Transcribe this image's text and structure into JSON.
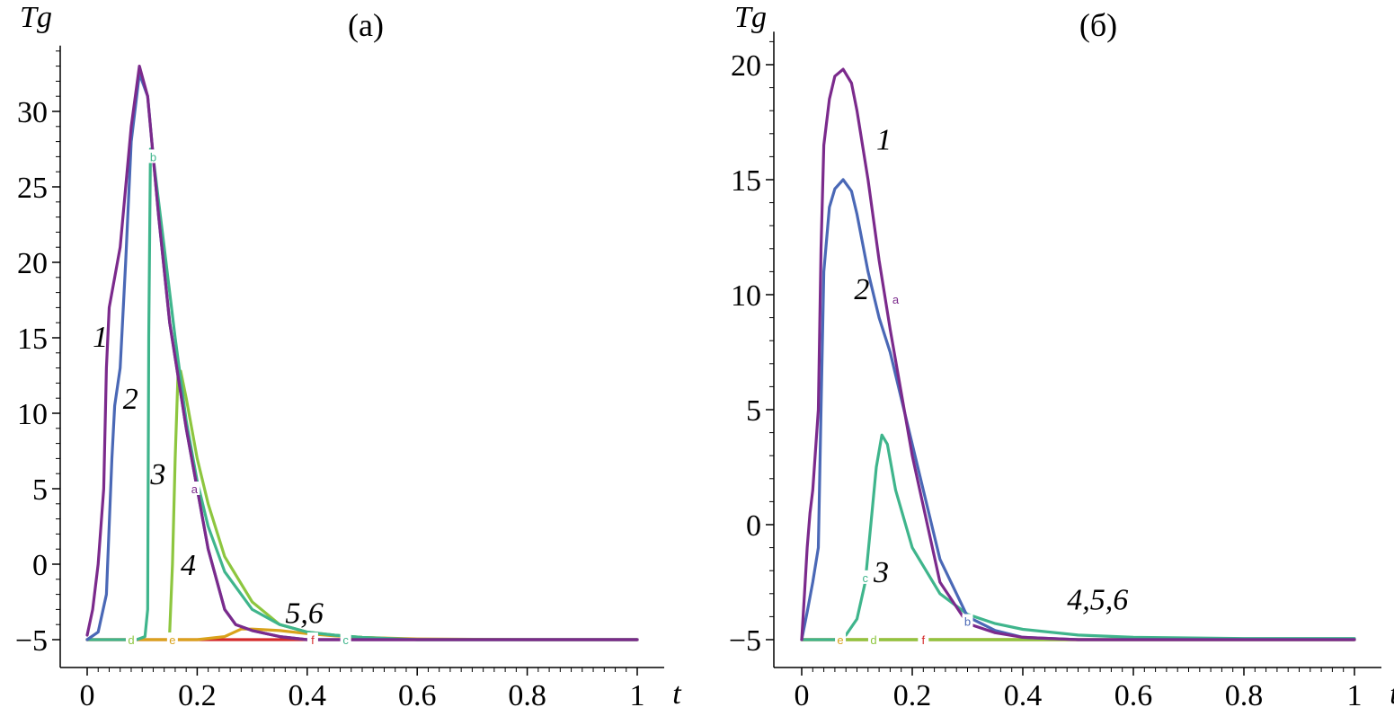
{
  "chart_data": [
    {
      "type": "line",
      "title": "(а)",
      "xlabel": "t",
      "ylabel": "Tg",
      "xlim": [
        0,
        1
      ],
      "ylim": [
        -5,
        34
      ],
      "x_ticks": [
        0,
        0.2,
        0.4,
        0.6,
        0.8,
        1
      ],
      "x_tick_labels": [
        "0",
        "0.2",
        "0.4",
        "0.6",
        "0.8",
        "1"
      ],
      "y_ticks": [
        -5,
        0,
        5,
        10,
        15,
        20,
        25,
        30
      ],
      "y_tick_labels": [
        "−5",
        "0",
        "5",
        "10",
        "15",
        "20",
        "25",
        "30"
      ],
      "series": [
        {
          "name": "1",
          "color": "#7b2a8c",
          "x": [
            0,
            0.01,
            0.02,
            0.03,
            0.035,
            0.04,
            0.06,
            0.08,
            0.095,
            0.11,
            0.13,
            0.15,
            0.18,
            0.2,
            0.22,
            0.25,
            0.27,
            0.3,
            0.35,
            0.4,
            0.5,
            0.6,
            0.8,
            1.0
          ],
          "y": [
            -4.7,
            -3,
            0,
            5,
            13,
            17,
            21,
            29,
            33,
            31,
            23,
            16,
            9,
            5,
            1,
            -3,
            -4,
            -4.4,
            -4.8,
            -5,
            -5,
            -5,
            -5,
            -5
          ]
        },
        {
          "name": "2",
          "color": "#4a68b6",
          "x": [
            0,
            0.02,
            0.035,
            0.045,
            0.05,
            0.06,
            0.07,
            0.08,
            0.095,
            0.11,
            0.13,
            0.15,
            0.18,
            0.2,
            0.22,
            0.25,
            0.27,
            0.3,
            0.35,
            0.4,
            0.5,
            0.6,
            0.8,
            1.0
          ],
          "y": [
            -5,
            -4.5,
            -2,
            7,
            10.5,
            13,
            20,
            28,
            32.5,
            31,
            23,
            16,
            9,
            5,
            1,
            -3,
            -4,
            -4.4,
            -4.8,
            -5,
            -5,
            -5,
            -5,
            -5
          ]
        },
        {
          "name": "3",
          "color": "#3fb58c",
          "x": [
            0,
            0.05,
            0.09,
            0.105,
            0.11,
            0.112,
            0.115,
            0.12,
            0.14,
            0.16,
            0.18,
            0.2,
            0.22,
            0.25,
            0.3,
            0.35,
            0.4,
            0.45,
            0.5,
            0.6,
            0.8,
            1.0
          ],
          "y": [
            -5,
            -5,
            -5,
            -4.8,
            -3,
            15,
            27.5,
            27,
            21,
            15,
            9.5,
            5.5,
            2.5,
            -0.5,
            -3,
            -4,
            -4.5,
            -4.7,
            -4.85,
            -5,
            -5,
            -5
          ]
        },
        {
          "name": "4",
          "color": "#8dc63f",
          "x": [
            0.15,
            0.155,
            0.16,
            0.165,
            0.17,
            0.18,
            0.2,
            0.22,
            0.25,
            0.3,
            0.35,
            0.4,
            0.45,
            0.5,
            0.6,
            0.8,
            1.0
          ],
          "y": [
            -4.5,
            0,
            7,
            12.5,
            12.8,
            11,
            7,
            4,
            0.5,
            -2.5,
            -4,
            -4.5,
            -4.7,
            -4.85,
            -5,
            -5,
            -5
          ]
        },
        {
          "name": "5",
          "color": "#d9a21b",
          "x": [
            0,
            0.1,
            0.15,
            0.2,
            0.25,
            0.28,
            0.3,
            0.35,
            0.4,
            0.45,
            0.5,
            0.6,
            0.8,
            1.0
          ],
          "y": [
            -5,
            -5,
            -5,
            -5,
            -4.8,
            -4.3,
            -4.3,
            -4.4,
            -4.6,
            -4.75,
            -4.85,
            -4.95,
            -5,
            -5
          ]
        },
        {
          "name": "6",
          "color": "#d42a2a",
          "x": [
            0,
            0.2,
            0.4,
            0.6,
            0.8,
            1.0
          ],
          "y": [
            -5,
            -5,
            -5,
            -5,
            -5,
            -5
          ]
        }
      ],
      "curve_labels": [
        {
          "text": "1",
          "x": 0.01,
          "y": 14.4
        },
        {
          "text": "2",
          "x": 0.065,
          "y": 10.3
        },
        {
          "text": "3",
          "x": 0.115,
          "y": 5.3
        },
        {
          "text": "4",
          "x": 0.17,
          "y": -0.7
        },
        {
          "text": "5,6",
          "x": 0.36,
          "y": -3.9
        }
      ],
      "markers": [
        {
          "text": "a",
          "x": 0.195,
          "y": 5,
          "color": "#7b2a8c"
        },
        {
          "text": "b",
          "x": 0.12,
          "y": 27,
          "color": "#3fb58c"
        },
        {
          "text": "c",
          "x": 0.47,
          "y": -5,
          "color": "#3fb58c"
        },
        {
          "text": "d",
          "x": 0.08,
          "y": -5,
          "color": "#8dc63f"
        },
        {
          "text": "e",
          "x": 0.155,
          "y": -5,
          "color": "#d9a21b"
        },
        {
          "text": "f",
          "x": 0.41,
          "y": -5,
          "color": "#d42a2a"
        }
      ]
    },
    {
      "type": "line",
      "title": "(б)",
      "xlabel": "t",
      "ylabel": "Tg",
      "xlim": [
        0,
        1
      ],
      "ylim": [
        -5.3,
        21.2
      ],
      "x_ticks": [
        0,
        0.2,
        0.4,
        0.6,
        0.8,
        1
      ],
      "x_tick_labels": [
        "0",
        "0.2",
        "0.4",
        "0.6",
        "0.8",
        "1"
      ],
      "y_ticks": [
        -5,
        0,
        5,
        10,
        15,
        20
      ],
      "y_tick_labels": [
        "−5",
        "0",
        "5",
        "10",
        "15",
        "20"
      ],
      "series": [
        {
          "name": "1",
          "color": "#7b2a8c",
          "x": [
            0,
            0.005,
            0.01,
            0.015,
            0.02,
            0.03,
            0.035,
            0.04,
            0.05,
            0.06,
            0.075,
            0.09,
            0.1,
            0.12,
            0.14,
            0.16,
            0.2,
            0.25,
            0.3,
            0.35,
            0.4,
            0.5,
            0.6,
            0.8,
            1.0
          ],
          "y": [
            -5,
            -3,
            -1,
            0.5,
            1.5,
            5,
            12,
            16.5,
            18.5,
            19.5,
            19.8,
            19.2,
            18,
            15,
            11.5,
            8.5,
            3,
            -2.5,
            -4.3,
            -4.7,
            -4.9,
            -5,
            -5,
            -5,
            -5
          ]
        },
        {
          "name": "2",
          "color": "#4a68b6",
          "x": [
            0,
            0.01,
            0.02,
            0.03,
            0.035,
            0.04,
            0.05,
            0.06,
            0.075,
            0.09,
            0.1,
            0.12,
            0.14,
            0.16,
            0.2,
            0.25,
            0.3,
            0.35,
            0.4,
            0.5,
            0.6,
            0.8,
            1.0
          ],
          "y": [
            -5,
            -3.8,
            -2.5,
            -1,
            5,
            11,
            13.8,
            14.6,
            15,
            14.5,
            13.5,
            11,
            9,
            7.5,
            3.5,
            -1.5,
            -4,
            -4.6,
            -4.9,
            -5,
            -5,
            -5,
            -5
          ]
        },
        {
          "name": "3",
          "color": "#3fb58c",
          "x": [
            0,
            0.06,
            0.08,
            0.1,
            0.115,
            0.125,
            0.135,
            0.145,
            0.155,
            0.17,
            0.2,
            0.25,
            0.3,
            0.35,
            0.4,
            0.5,
            0.6,
            0.8,
            1.0
          ],
          "y": [
            -5,
            -5,
            -4.8,
            -4.1,
            -2.5,
            0,
            2.5,
            3.9,
            3.5,
            1.5,
            -1,
            -3,
            -3.9,
            -4.3,
            -4.55,
            -4.8,
            -4.9,
            -4.95,
            -4.95
          ]
        },
        {
          "name": "4",
          "color": "#8dc63f",
          "x": [
            0,
            0.2,
            0.4,
            0.6,
            0.8,
            1.0
          ],
          "y": [
            -5,
            -5,
            -5,
            -5,
            -5,
            -5
          ]
        },
        {
          "name": "5",
          "color": "#d9a21b",
          "x": [
            0,
            0.2,
            0.4,
            0.6,
            0.8,
            1.0
          ],
          "y": [
            -5,
            -5,
            -5,
            -5,
            -5,
            -5
          ]
        },
        {
          "name": "6",
          "color": "#d42a2a",
          "x": [
            0,
            0.2,
            0.4,
            0.6,
            0.8,
            1.0
          ],
          "y": [
            -5,
            -5,
            -5,
            -5,
            -5,
            -5
          ]
        }
      ],
      "curve_labels": [
        {
          "text": "1",
          "x": 0.135,
          "y": 16.3
        },
        {
          "text": "2",
          "x": 0.095,
          "y": 9.8
        },
        {
          "text": "3",
          "x": 0.13,
          "y": -2.5
        },
        {
          "text": "4,5,6",
          "x": 0.48,
          "y": -3.7
        }
      ],
      "markers": [
        {
          "text": "a",
          "x": 0.17,
          "y": 9.8,
          "color": "#7b2a8c"
        },
        {
          "text": "b",
          "x": 0.3,
          "y": -4.2,
          "color": "#4a68b6"
        },
        {
          "text": "c",
          "x": 0.115,
          "y": -2.3,
          "color": "#3fb58c"
        },
        {
          "text": "d",
          "x": 0.13,
          "y": -5,
          "color": "#8dc63f"
        },
        {
          "text": "e",
          "x": 0.07,
          "y": -5,
          "color": "#d9a21b"
        },
        {
          "text": "f",
          "x": 0.22,
          "y": -5,
          "color": "#d42a2a"
        }
      ]
    }
  ]
}
